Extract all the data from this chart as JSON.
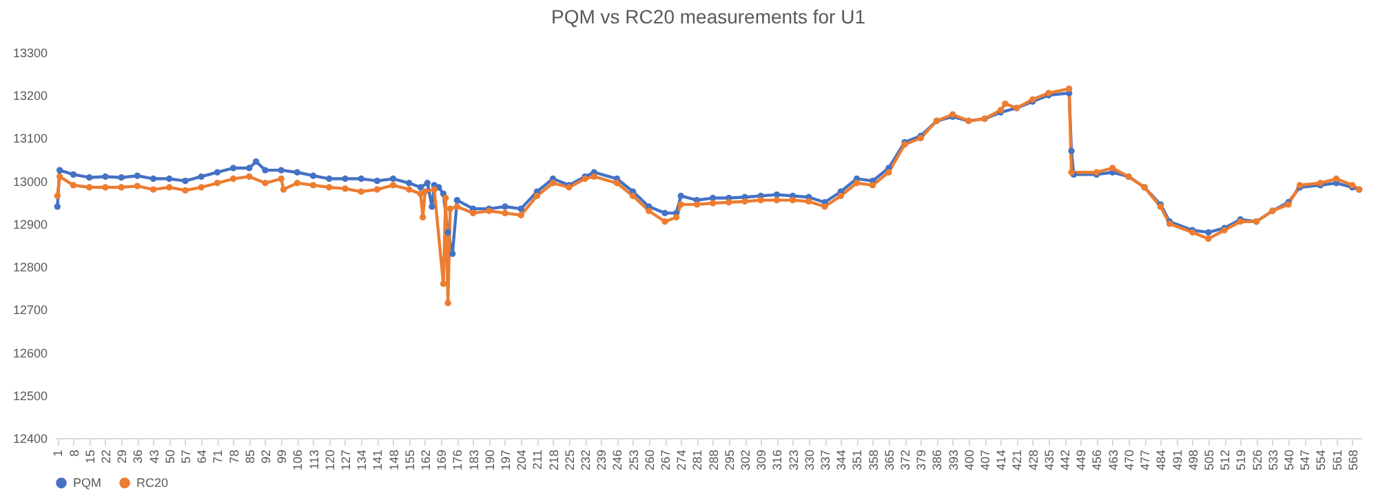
{
  "chart_data": {
    "type": "line",
    "title": "PQM vs RC20 measurements for U1",
    "marker": "circle",
    "legend": "bottom",
    "xlim": [
      0,
      572
    ],
    "xticks": [
      1,
      8,
      15,
      22,
      29,
      36,
      43,
      50,
      57,
      64,
      71,
      78,
      85,
      92,
      99,
      106,
      113,
      120,
      127,
      134,
      141,
      148,
      155,
      162,
      169,
      176,
      183,
      190,
      197,
      204,
      211,
      218,
      225,
      232,
      239,
      246,
      253,
      260,
      267,
      274,
      281,
      288,
      295,
      302,
      309,
      316,
      323,
      330,
      337,
      344,
      351,
      358,
      365,
      372,
      379,
      386,
      393,
      400,
      407,
      414,
      421,
      428,
      435,
      442,
      449,
      456,
      463,
      470,
      477,
      484,
      491,
      498,
      505,
      512,
      519,
      526,
      533,
      540,
      547,
      554,
      561,
      568
    ],
    "ylim": [
      12400,
      13300
    ],
    "yticks": [
      12400,
      12500,
      12600,
      12700,
      12800,
      12900,
      13000,
      13100,
      13200,
      13300
    ],
    "series": [
      {
        "name": "PQM",
        "color": "#4472c4",
        "x": [
          1,
          2,
          8,
          15,
          22,
          29,
          36,
          43,
          50,
          57,
          64,
          71,
          78,
          85,
          88,
          92,
          99,
          106,
          113,
          120,
          127,
          134,
          141,
          148,
          155,
          160,
          163,
          165,
          166,
          168,
          170,
          172,
          174,
          176,
          183,
          190,
          197,
          204,
          211,
          218,
          225,
          232,
          236,
          246,
          253,
          260,
          267,
          272,
          274,
          281,
          288,
          295,
          302,
          309,
          316,
          323,
          330,
          337,
          344,
          351,
          358,
          365,
          372,
          379,
          386,
          393,
          400,
          407,
          414,
          421,
          428,
          435,
          444,
          445,
          446,
          456,
          463,
          470,
          477,
          484,
          488,
          498,
          505,
          512,
          519,
          526,
          533,
          540,
          545,
          554,
          561,
          568,
          571
        ],
        "values": [
          12940,
          13025,
          13015,
          13008,
          13010,
          13008,
          13012,
          13005,
          13005,
          13000,
          13010,
          13020,
          13030,
          13030,
          13045,
          13025,
          13025,
          13020,
          13012,
          13005,
          13005,
          13005,
          13000,
          13005,
          12995,
          12985,
          12995,
          12940,
          12990,
          12985,
          12970,
          12880,
          12830,
          12955,
          12935,
          12935,
          12940,
          12935,
          12975,
          13005,
          12990,
          13010,
          13020,
          13005,
          12975,
          12940,
          12925,
          12925,
          12965,
          12955,
          12960,
          12960,
          12962,
          12965,
          12968,
          12965,
          12962,
          12950,
          12975,
          13005,
          13000,
          13030,
          13090,
          13105,
          13140,
          13150,
          13140,
          13145,
          13160,
          13170,
          13185,
          13200,
          13205,
          13070,
          13015,
          13015,
          13020,
          13010,
          12985,
          12945,
          12905,
          12885,
          12880,
          12890,
          12910,
          12905,
          12930,
          12950,
          12985,
          12990,
          12995,
          12985,
          12980
        ]
      },
      {
        "name": "RC20",
        "color": "#ed7d31",
        "x": [
          1,
          2,
          8,
          15,
          22,
          29,
          36,
          43,
          50,
          57,
          64,
          71,
          78,
          85,
          92,
          99,
          100,
          106,
          113,
          120,
          127,
          134,
          141,
          148,
          155,
          160,
          161,
          162,
          166,
          170,
          171,
          172,
          173,
          176,
          183,
          190,
          197,
          204,
          211,
          218,
          225,
          232,
          236,
          246,
          253,
          260,
          267,
          272,
          274,
          281,
          288,
          295,
          302,
          309,
          316,
          323,
          330,
          337,
          344,
          351,
          358,
          365,
          372,
          379,
          386,
          393,
          400,
          407,
          414,
          416,
          421,
          428,
          435,
          444,
          445,
          456,
          463,
          470,
          477,
          484,
          488,
          498,
          505,
          512,
          519,
          526,
          533,
          540,
          545,
          554,
          561,
          568,
          571
        ],
        "values": [
          12965,
          13010,
          12990,
          12985,
          12985,
          12985,
          12988,
          12980,
          12985,
          12978,
          12985,
          12995,
          13005,
          13010,
          12995,
          13005,
          12980,
          12995,
          12990,
          12985,
          12982,
          12975,
          12980,
          12990,
          12980,
          12970,
          12915,
          12975,
          12980,
          12760,
          12960,
          12715,
          12935,
          12940,
          12925,
          12930,
          12925,
          12920,
          12965,
          12995,
          12985,
          13005,
          13010,
          12995,
          12965,
          12930,
          12905,
          12915,
          12945,
          12945,
          12948,
          12950,
          12952,
          12955,
          12955,
          12955,
          12952,
          12940,
          12965,
          12995,
          12990,
          13020,
          13085,
          13100,
          13140,
          13155,
          13140,
          13145,
          13165,
          13180,
          13170,
          13190,
          13205,
          13215,
          13020,
          13020,
          13030,
          13010,
          12985,
          12940,
          12900,
          12880,
          12865,
          12885,
          12905,
          12905,
          12930,
          12945,
          12990,
          12995,
          13005,
          12990,
          12980
        ]
      }
    ]
  }
}
